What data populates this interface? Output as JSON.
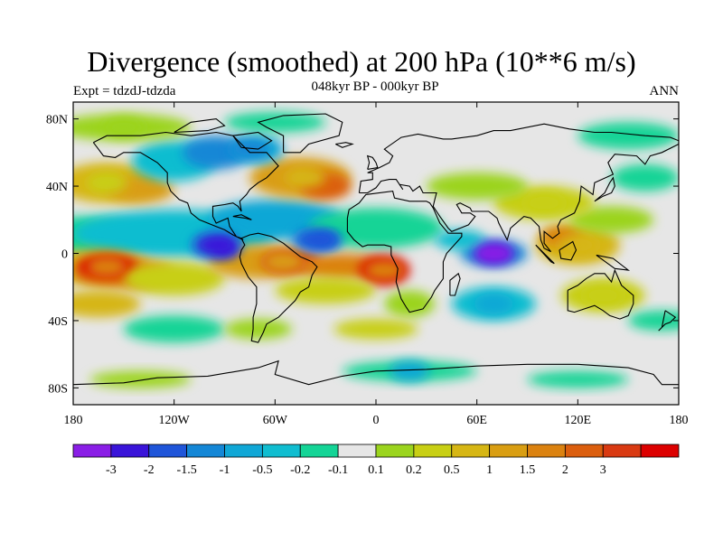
{
  "title": "Divergence (smoothed) at 200 hPa (10**6 m/s)",
  "left_label": "Expt = tdzdJ-tdzda",
  "center_label": "048kyr BP - 000kyr BP",
  "right_label": "ANN",
  "map": {
    "lon_range": [
      -180,
      180
    ],
    "lat_range": [
      -90,
      90
    ],
    "y_ticks": [
      "80N",
      "40N",
      "0",
      "40S",
      "80S"
    ],
    "y_tick_lats": [
      80,
      40,
      0,
      -40,
      -80
    ],
    "x_ticks": [
      "180",
      "120W",
      "60W",
      "0",
      "60E",
      "120E",
      "180"
    ],
    "x_tick_lons": [
      -180,
      -120,
      -60,
      0,
      60,
      120,
      180
    ],
    "background_color": "#e6e6e6",
    "features": [
      {
        "name": "n-pacific-positive",
        "lon": -160,
        "lat": 42,
        "value": 0.5
      },
      {
        "name": "n-atlantic-positive",
        "lon": -42,
        "lat": 45,
        "value": 1.0
      },
      {
        "name": "east-pacific-negative",
        "lon": -95,
        "lat": 5,
        "value": -2.0
      },
      {
        "name": "atlantic-negative",
        "lon": -35,
        "lat": 8,
        "value": -1.5
      },
      {
        "name": "s-pacific-positive",
        "lon": -160,
        "lat": -8,
        "value": 2.0
      },
      {
        "name": "s-america-positive",
        "lon": -55,
        "lat": -5,
        "value": 1.5
      },
      {
        "name": "se-atlantic-positive",
        "lon": 5,
        "lat": -10,
        "value": 2.0
      },
      {
        "name": "indian-negative",
        "lon": 70,
        "lat": 0,
        "value": -3.0
      },
      {
        "name": "maritime-positive",
        "lon": 120,
        "lat": 5,
        "value": 1.0
      },
      {
        "name": "australia-positive",
        "lon": 135,
        "lat": -25,
        "value": 0.5
      },
      {
        "name": "north-polar-positive",
        "lon": -150,
        "lat": 75,
        "value": 0.2
      },
      {
        "name": "north-atlantic-neg",
        "lon": -75,
        "lat": 62,
        "value": -1.0
      },
      {
        "name": "asia-positive",
        "lon": 100,
        "lat": 30,
        "value": 0.5
      },
      {
        "name": "s-indian-neg",
        "lon": 70,
        "lat": -30,
        "value": -0.5
      },
      {
        "name": "s-ocean-neg",
        "lon": 20,
        "lat": -70,
        "value": -0.5
      }
    ]
  },
  "colorbar": {
    "colors": [
      "#8a1ee6",
      "#3a14d9",
      "#1f55d9",
      "#1487d6",
      "#10a7d6",
      "#10bdd0",
      "#14d496",
      "#e6e6e6",
      "#9bd41e",
      "#c8cf14",
      "#d6b614",
      "#d99e12",
      "#db8210",
      "#db5e0e",
      "#d93a12",
      "#dc0000"
    ],
    "labels": [
      "-3",
      "-2",
      "-1.5",
      "-1",
      "-0.5",
      "-0.2",
      "-0.1",
      "0.1",
      "0.2",
      "0.5",
      "1",
      "1.5",
      "2",
      "3"
    ]
  }
}
